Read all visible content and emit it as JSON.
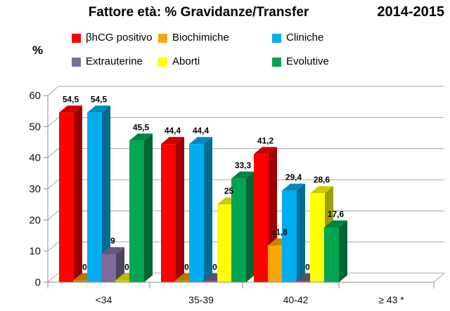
{
  "header": {
    "period": "2014-2015"
  },
  "chart_data": {
    "type": "bar",
    "style": "3d-clustered-column",
    "title": "Fattore età: % Gravidanze/Transfer",
    "period_label": "2014-2015",
    "ylabel": "%",
    "xlabel": "",
    "ylim": [
      0,
      60
    ],
    "yticks": [
      0,
      10,
      20,
      30,
      40,
      50,
      60
    ],
    "grid": true,
    "legend_position": "top",
    "decimal_separator": ",",
    "grid_color": "#A8A8A8",
    "axis_color": "#8C8C8C",
    "categories": [
      "<34",
      "35-39",
      "40-42",
      "≥ 43 *"
    ],
    "series": [
      {
        "name": "βhCG positivo",
        "color": "#FF0000",
        "values": [
          54.5,
          44.4,
          41.2,
          null
        ],
        "labels": [
          "54,5",
          "44,4",
          "41,2",
          ""
        ]
      },
      {
        "name": "Biochimiche",
        "color": "#FCA50A",
        "values": [
          0,
          0,
          11.8,
          null
        ],
        "labels": [
          "0",
          "0",
          "11,8",
          ""
        ]
      },
      {
        "name": "Cliniche",
        "color": "#00AEEF",
        "values": [
          54.5,
          44.4,
          29.4,
          null
        ],
        "labels": [
          "54,5",
          "44,4",
          "29,4",
          ""
        ]
      },
      {
        "name": "Extrauterine",
        "color": "#7E6B9C",
        "values": [
          9,
          0,
          0,
          null
        ],
        "labels": [
          "9",
          "0",
          "0",
          ""
        ]
      },
      {
        "name": "Aborti",
        "color": "#FFFF00",
        "values": [
          0,
          25,
          28.6,
          null
        ],
        "labels": [
          "0",
          "25",
          "28,6",
          ""
        ]
      },
      {
        "name": "Evolutive",
        "color": "#00A551",
        "values": [
          45.5,
          33.3,
          17.6,
          null
        ],
        "labels": [
          "45,5",
          "33,3",
          "17,6",
          ""
        ]
      }
    ]
  }
}
